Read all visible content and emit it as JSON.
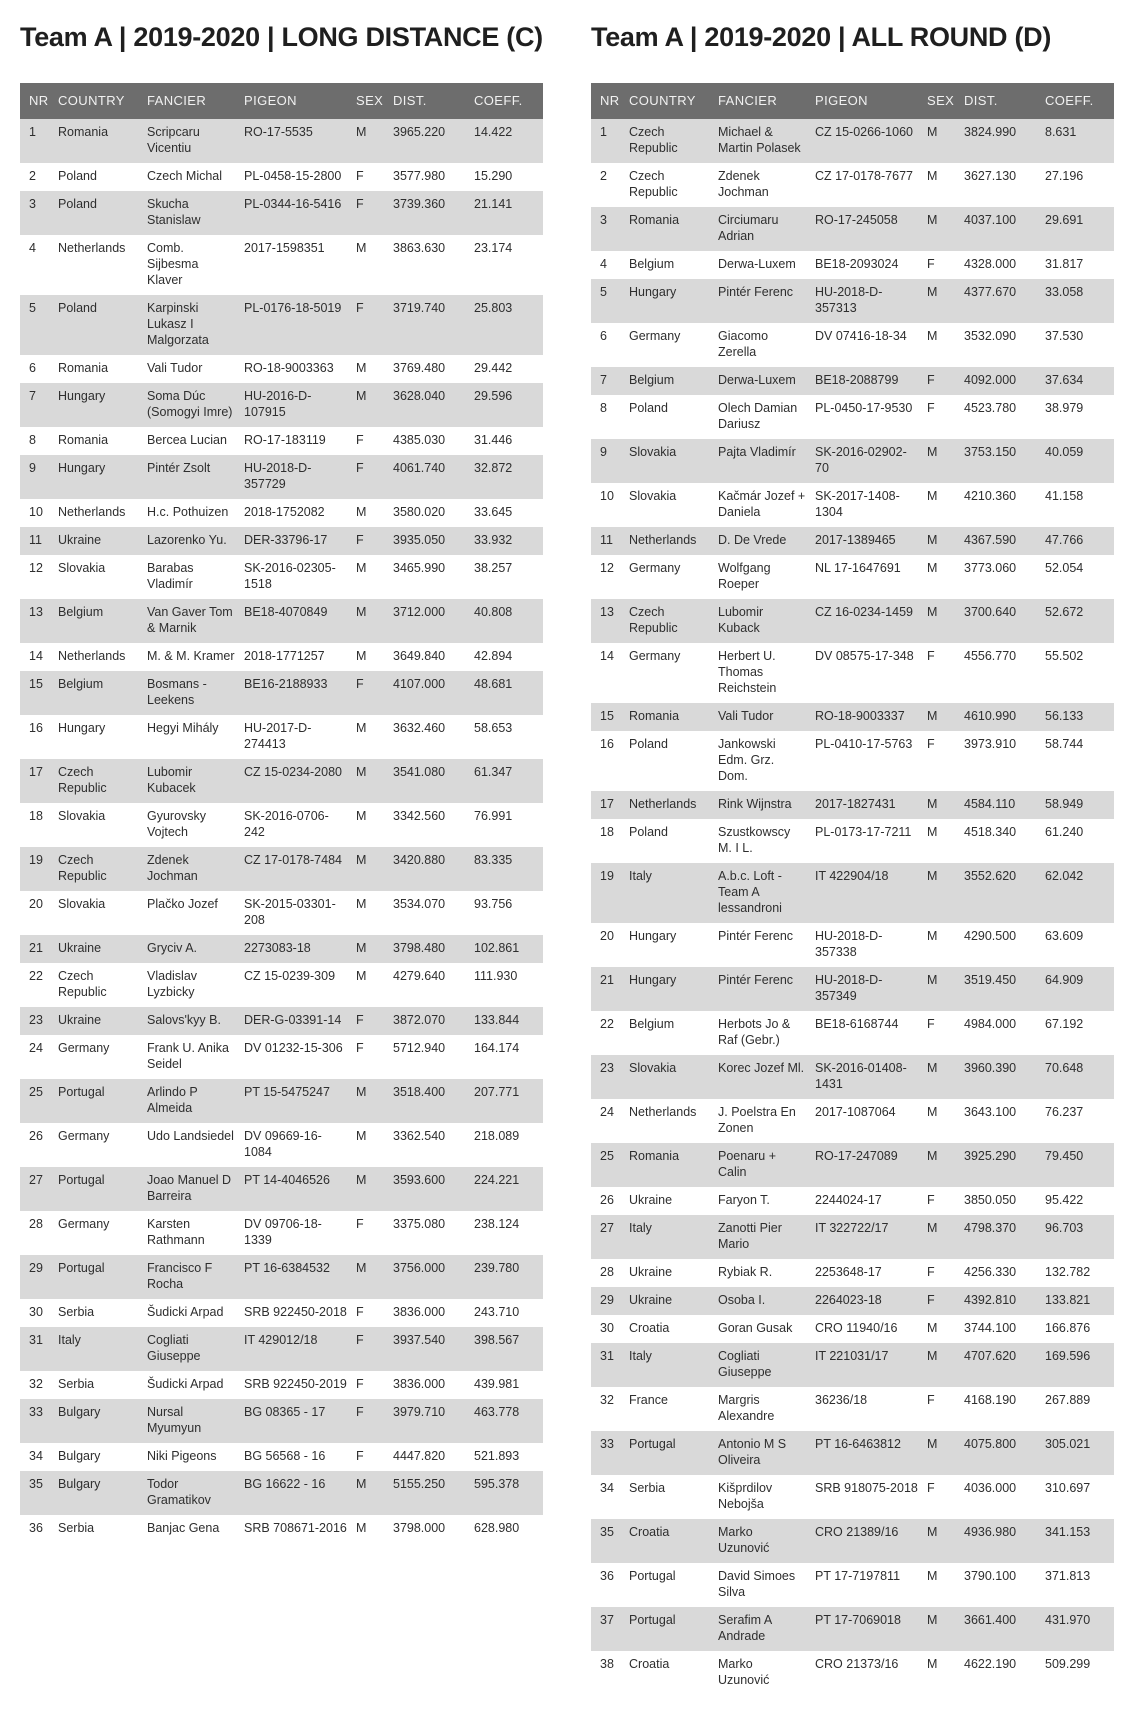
{
  "colors": {
    "header_bg": "#6d6d6d",
    "header_text": "#f2f2f2",
    "stripe_bg": "#d9d9d9",
    "title_text": "#1f1f1f",
    "body_text": "#2e2e2e",
    "page_bg": "#ffffff"
  },
  "columns": [
    "NR",
    "COUNTRY",
    "FANCIER",
    "PIGEON",
    "SEX",
    "DIST.",
    "COEFF."
  ],
  "tables": [
    {
      "title": "Team A | 2019-2020 | LONG DISTANCE (C)",
      "rows": [
        [
          "1",
          "Romania",
          "Scripcaru Vicentiu",
          "RO-17-5535",
          "M",
          "3965.220",
          "14.422"
        ],
        [
          "2",
          "Poland",
          "Czech Michal",
          "PL-0458-15-2800",
          "F",
          "3577.980",
          "15.290"
        ],
        [
          "3",
          "Poland",
          "Skucha Stanislaw",
          "PL-0344-16-5416",
          "F",
          "3739.360",
          "21.141"
        ],
        [
          "4",
          "Netherlands",
          "Comb. Sijbesma Klaver",
          "2017-1598351",
          "M",
          "3863.630",
          "23.174"
        ],
        [
          "5",
          "Poland",
          "Karpinski Lukasz I Malgorzata",
          "PL-0176-18-5019",
          "F",
          "3719.740",
          "25.803"
        ],
        [
          "6",
          "Romania",
          "Vali Tudor",
          "RO-18-9003363",
          "M",
          "3769.480",
          "29.442"
        ],
        [
          "7",
          "Hungary",
          "Soma Dúc (Somogyi Imre)",
          "HU-2016-D-107915",
          "M",
          "3628.040",
          "29.596"
        ],
        [
          "8",
          "Romania",
          "Bercea Lucian",
          "RO-17-183119",
          "F",
          "4385.030",
          "31.446"
        ],
        [
          "9",
          "Hungary",
          "Pintér Zsolt",
          "HU-2018-D-357729",
          "F",
          "4061.740",
          "32.872"
        ],
        [
          "10",
          "Netherlands",
          "H.c. Pothuizen",
          "2018-1752082",
          "M",
          "3580.020",
          "33.645"
        ],
        [
          "11",
          "Ukraine",
          "Lazorenko Yu.",
          "DER-33796-17",
          "F",
          "3935.050",
          "33.932"
        ],
        [
          "12",
          "Slovakia",
          "Barabas Vladimír",
          "SK-2016-02305-1518",
          "M",
          "3465.990",
          "38.257"
        ],
        [
          "13",
          "Belgium",
          "Van Gaver Tom & Marnik",
          "BE18-4070849",
          "M",
          "3712.000",
          "40.808"
        ],
        [
          "14",
          "Netherlands",
          "M. & M. Kramer",
          "2018-1771257",
          "M",
          "3649.840",
          "42.894"
        ],
        [
          "15",
          "Belgium",
          "Bosmans - Leekens",
          "BE16-2188933",
          "F",
          "4107.000",
          "48.681"
        ],
        [
          "16",
          "Hungary",
          "Hegyi Mihály",
          "HU-2017-D-274413",
          "M",
          "3632.460",
          "58.653"
        ],
        [
          "17",
          "Czech Republic",
          "Lubomir Kubacek",
          "CZ 15-0234-2080",
          "M",
          "3541.080",
          "61.347"
        ],
        [
          "18",
          "Slovakia",
          "Gyurovsky Vojtech",
          "SK-2016-0706-242",
          "M",
          "3342.560",
          "76.991"
        ],
        [
          "19",
          "Czech Republic",
          "Zdenek Jochman",
          "CZ 17-0178-7484",
          "M",
          "3420.880",
          "83.335"
        ],
        [
          "20",
          "Slovakia",
          "Plačko Jozef",
          "SK-2015-03301-208",
          "M",
          "3534.070",
          "93.756"
        ],
        [
          "21",
          "Ukraine",
          "Gryciv A.",
          "2273083-18",
          "M",
          "3798.480",
          "102.861"
        ],
        [
          "22",
          "Czech Republic",
          "Vladislav Lyzbicky",
          "CZ 15-0239-309",
          "M",
          "4279.640",
          "111.930"
        ],
        [
          "23",
          "Ukraine",
          "Salovs'kyy B.",
          "DER-G-03391-14",
          "F",
          "3872.070",
          "133.844"
        ],
        [
          "24",
          "Germany",
          "Frank U. Anika Seidel",
          "DV 01232-15-306",
          "F",
          "5712.940",
          "164.174"
        ],
        [
          "25",
          "Portugal",
          "Arlindo P Almeida",
          "PT 15-5475247",
          "M",
          "3518.400",
          "207.771"
        ],
        [
          "26",
          "Germany",
          "Udo Landsiedel",
          "DV 09669-16-1084",
          "M",
          "3362.540",
          "218.089"
        ],
        [
          "27",
          "Portugal",
          "Joao Manuel D Barreira",
          "PT 14-4046526",
          "M",
          "3593.600",
          "224.221"
        ],
        [
          "28",
          "Germany",
          "Karsten Rathmann",
          "DV 09706-18-1339",
          "F",
          "3375.080",
          "238.124"
        ],
        [
          "29",
          "Portugal",
          "Francisco F Rocha",
          "PT 16-6384532",
          "M",
          "3756.000",
          "239.780"
        ],
        [
          "30",
          "Serbia",
          "Šudicki Arpad",
          "SRB 922450-2018",
          "F",
          "3836.000",
          "243.710"
        ],
        [
          "31",
          "Italy",
          "Cogliati Giuseppe",
          "IT 429012/18",
          "F",
          "3937.540",
          "398.567"
        ],
        [
          "32",
          "Serbia",
          "Šudicki Arpad",
          "SRB 922450-2019",
          "F",
          "3836.000",
          "439.981"
        ],
        [
          "33",
          "Bulgary",
          "Nursal Myumyun",
          "BG 08365 - 17",
          "F",
          "3979.710",
          "463.778"
        ],
        [
          "34",
          "Bulgary",
          "Niki Pigeons",
          "BG 56568 - 16",
          "F",
          "4447.820",
          "521.893"
        ],
        [
          "35",
          "Bulgary",
          "Todor Gramatikov",
          "BG 16622 - 16",
          "M",
          "5155.250",
          "595.378"
        ],
        [
          "36",
          "Serbia",
          "Banjac Gena",
          "SRB 708671-2016",
          "M",
          "3798.000",
          "628.980"
        ]
      ]
    },
    {
      "title": "Team A | 2019-2020 | ALL ROUND (D)",
      "rows": [
        [
          "1",
          "Czech Republic",
          "Michael & Martin Polasek",
          "CZ 15-0266-1060",
          "M",
          "3824.990",
          "8.631"
        ],
        [
          "2",
          "Czech Republic",
          "Zdenek Jochman",
          "CZ 17-0178-7677",
          "M",
          "3627.130",
          "27.196"
        ],
        [
          "3",
          "Romania",
          "Circiumaru Adrian",
          "RO-17-245058",
          "M",
          "4037.100",
          "29.691"
        ],
        [
          "4",
          "Belgium",
          "Derwa-Luxem",
          "BE18-2093024",
          "F",
          "4328.000",
          "31.817"
        ],
        [
          "5",
          "Hungary",
          "Pintér Ferenc",
          "HU-2018-D-357313",
          "M",
          "4377.670",
          "33.058"
        ],
        [
          "6",
          "Germany",
          "Giacomo Zerella",
          "DV 07416-18-34",
          "M",
          "3532.090",
          "37.530"
        ],
        [
          "7",
          "Belgium",
          "Derwa-Luxem",
          "BE18-2088799",
          "F",
          "4092.000",
          "37.634"
        ],
        [
          "8",
          "Poland",
          "Olech Damian Dariusz",
          "PL-0450-17-9530",
          "F",
          "4523.780",
          "38.979"
        ],
        [
          "9",
          "Slovakia",
          "Pajta Vladimír",
          "SK-2016-02902-70",
          "M",
          "3753.150",
          "40.059"
        ],
        [
          "10",
          "Slovakia",
          "Kačmár Jozef + Daniela",
          "SK-2017-1408-1304",
          "M",
          "4210.360",
          "41.158"
        ],
        [
          "11",
          "Netherlands",
          "D. De Vrede",
          "2017-1389465",
          "M",
          "4367.590",
          "47.766"
        ],
        [
          "12",
          "Germany",
          "Wolfgang Roeper",
          "NL 17-1647691",
          "M",
          "3773.060",
          "52.054"
        ],
        [
          "13",
          "Czech Republic",
          "Lubomir Kuback",
          "CZ 16-0234-1459",
          "M",
          "3700.640",
          "52.672"
        ],
        [
          "14",
          "Germany",
          "Herbert U. Thomas Reichstein",
          "DV 08575-17-348",
          "F",
          "4556.770",
          "55.502"
        ],
        [
          "15",
          "Romania",
          "Vali Tudor",
          "RO-18-9003337",
          "M",
          "4610.990",
          "56.133"
        ],
        [
          "16",
          "Poland",
          "Jankowski Edm. Grz. Dom.",
          "PL-0410-17-5763",
          "F",
          "3973.910",
          "58.744"
        ],
        [
          "17",
          "Netherlands",
          "Rink Wijnstra",
          "2017-1827431",
          "M",
          "4584.110",
          "58.949"
        ],
        [
          "18",
          "Poland",
          "Szustkowscy M. I L.",
          "PL-0173-17-7211",
          "M",
          "4518.340",
          "61.240"
        ],
        [
          "19",
          "Italy",
          "A.b.c. Loft - Team A lessandroni",
          "IT 422904/18",
          "M",
          "3552.620",
          "62.042"
        ],
        [
          "20",
          "Hungary",
          "Pintér Ferenc",
          "HU-2018-D-357338",
          "M",
          "4290.500",
          "63.609"
        ],
        [
          "21",
          "Hungary",
          "Pintér Ferenc",
          "HU-2018-D-357349",
          "M",
          "3519.450",
          "64.909"
        ],
        [
          "22",
          "Belgium",
          "Herbots Jo & Raf (Gebr.)",
          "BE18-6168744",
          "F",
          "4984.000",
          "67.192"
        ],
        [
          "23",
          "Slovakia",
          "Korec Jozef Ml.",
          "SK-2016-01408-1431",
          "M",
          "3960.390",
          "70.648"
        ],
        [
          "24",
          "Netherlands",
          "J. Poelstra En Zonen",
          "2017-1087064",
          "M",
          "3643.100",
          "76.237"
        ],
        [
          "25",
          "Romania",
          "Poenaru + Calin",
          "RO-17-247089",
          "M",
          "3925.290",
          "79.450"
        ],
        [
          "26",
          "Ukraine",
          "Faryon T.",
          "2244024-17",
          "F",
          "3850.050",
          "95.422"
        ],
        [
          "27",
          "Italy",
          "Zanotti Pier Mario",
          "IT 322722/17",
          "M",
          "4798.370",
          "96.703"
        ],
        [
          "28",
          "Ukraine",
          "Rybiak R.",
          "2253648-17",
          "F",
          "4256.330",
          "132.782"
        ],
        [
          "29",
          "Ukraine",
          "Osoba I.",
          "2264023-18",
          "F",
          "4392.810",
          "133.821"
        ],
        [
          "30",
          "Croatia",
          "Goran Gusak",
          "CRO 11940/16",
          "M",
          "3744.100",
          "166.876"
        ],
        [
          "31",
          "Italy",
          "Cogliati Giuseppe",
          "IT 221031/17",
          "M",
          "4707.620",
          "169.596"
        ],
        [
          "32",
          "France",
          "Margris Alexandre",
          "36236/18",
          "F",
          "4168.190",
          "267.889"
        ],
        [
          "33",
          "Portugal",
          "Antonio M S Oliveira",
          "PT 16-6463812",
          "M",
          "4075.800",
          "305.021"
        ],
        [
          "34",
          "Serbia",
          "Kišprdilov Nebojša",
          "SRB 918075-2018",
          "F",
          "4036.000",
          "310.697"
        ],
        [
          "35",
          "Croatia",
          "Marko Uzunović",
          "CRO 21389/16",
          "M",
          "4936.980",
          "341.153"
        ],
        [
          "36",
          "Portugal",
          "David Simoes Silva",
          "PT 17-7197811",
          "M",
          "3790.100",
          "371.813"
        ],
        [
          "37",
          "Portugal",
          "Serafim A Andrade",
          "PT 17-7069018",
          "M",
          "3661.400",
          "431.970"
        ],
        [
          "38",
          "Croatia",
          "Marko Uzunović",
          "CRO 21373/16",
          "M",
          "4622.190",
          "509.299"
        ]
      ]
    }
  ]
}
